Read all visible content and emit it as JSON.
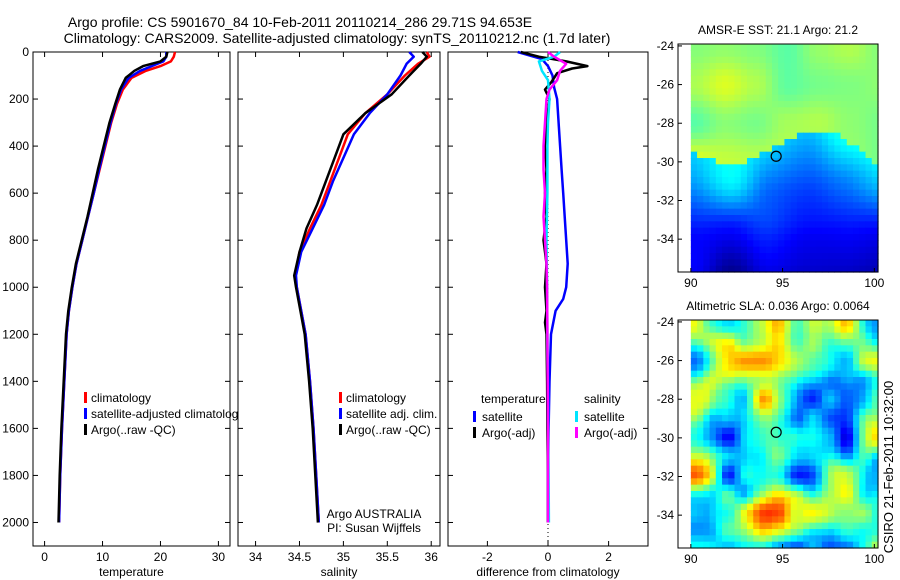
{
  "header": {
    "title_line1": "Argo profile: CS 5901670_84 10-Feb-2011 20110214_286 29.71S 94.653E",
    "title_line2": "Climatology: CARS2009. Satellite-adjusted climatology: synTS_20110212.nc (1.7d later)"
  },
  "side_note": "CSIRO 21-Feb-2011 10:32:00",
  "colors": {
    "climatology": "#ff0000",
    "satellite": "#0000ff",
    "argo": "#000000",
    "sal_satellite": "#00e5ff",
    "sal_argo": "#ff00ff"
  },
  "chart_data": [
    {
      "id": "temp",
      "type": "line",
      "xlabel": "temperature",
      "ylabel": "",
      "xlim": [
        -2,
        32
      ],
      "ylim": [
        2100,
        0
      ],
      "xticks": [
        0,
        10,
        20,
        30
      ],
      "yticks": [
        0,
        200,
        400,
        600,
        800,
        1000,
        1200,
        1400,
        1600,
        1800,
        2000
      ],
      "legend": [
        "climatology",
        "satellite-adjusted climatolog",
        "Argo(..raw -QC)"
      ],
      "series": [
        {
          "name": "climatology",
          "color": "#ff0000",
          "points": [
            [
              22.5,
              0
            ],
            [
              22.3,
              20
            ],
            [
              21.8,
              40
            ],
            [
              20.0,
              60
            ],
            [
              17.5,
              80
            ],
            [
              15.0,
              110
            ],
            [
              13.5,
              160
            ],
            [
              12.5,
              220
            ],
            [
              11.5,
              300
            ],
            [
              10.5,
              400
            ],
            [
              9.5,
              500
            ],
            [
              8.5,
              600
            ],
            [
              7.5,
              700
            ],
            [
              6.5,
              800
            ],
            [
              5.5,
              900
            ],
            [
              4.8,
              1000
            ],
            [
              4.2,
              1100
            ],
            [
              3.8,
              1200
            ],
            [
              3.4,
              1400
            ],
            [
              3.0,
              1600
            ],
            [
              2.7,
              1800
            ],
            [
              2.5,
              2000
            ]
          ]
        },
        {
          "name": "satellite-adjusted climatolog",
          "color": "#0000ff",
          "points": [
            [
              21.0,
              0
            ],
            [
              21.0,
              20
            ],
            [
              20.5,
              40
            ],
            [
              18.5,
              60
            ],
            [
              16.5,
              80
            ],
            [
              14.5,
              110
            ],
            [
              13.2,
              160
            ],
            [
              12.3,
              220
            ],
            [
              11.4,
              300
            ],
            [
              10.4,
              400
            ],
            [
              9.4,
              500
            ],
            [
              8.5,
              600
            ],
            [
              7.5,
              700
            ],
            [
              6.5,
              800
            ],
            [
              5.5,
              900
            ],
            [
              4.8,
              1000
            ],
            [
              4.2,
              1100
            ],
            [
              3.8,
              1200
            ],
            [
              3.4,
              1400
            ],
            [
              3.0,
              1600
            ],
            [
              2.7,
              1800
            ],
            [
              2.5,
              2000
            ]
          ]
        },
        {
          "name": "Argo(..raw -QC)",
          "color": "#000000",
          "points": [
            [
              21.2,
              0
            ],
            [
              21.0,
              20
            ],
            [
              20.0,
              40
            ],
            [
              17.0,
              60
            ],
            [
              15.5,
              80
            ],
            [
              14.0,
              110
            ],
            [
              13.0,
              160
            ],
            [
              12.2,
              220
            ],
            [
              11.2,
              300
            ],
            [
              10.2,
              400
            ],
            [
              9.2,
              500
            ],
            [
              8.3,
              600
            ],
            [
              7.4,
              700
            ],
            [
              6.4,
              800
            ],
            [
              5.4,
              900
            ],
            [
              4.7,
              1000
            ],
            [
              4.1,
              1100
            ],
            [
              3.7,
              1200
            ],
            [
              3.3,
              1400
            ],
            [
              2.9,
              1600
            ],
            [
              2.6,
              1800
            ],
            [
              2.4,
              2000
            ]
          ]
        }
      ]
    },
    {
      "id": "salt",
      "type": "line",
      "xlabel": "salinity",
      "xlim": [
        33.8,
        36.1
      ],
      "ylim": [
        2100,
        0
      ],
      "xticks": [
        34,
        34.5,
        35,
        35.5,
        36
      ],
      "yticks": [
        0,
        200,
        400,
        600,
        800,
        1000,
        1200,
        1400,
        1600,
        1800,
        2000
      ],
      "legend": [
        "climatology",
        "satellite adj. clim.",
        "Argo(..raw -QC)"
      ],
      "annotation": [
        "Argo AUSTRALIA",
        "PI: Susan Wijffels"
      ],
      "series": [
        {
          "name": "climatology",
          "color": "#ff0000",
          "points": [
            [
              35.95,
              0
            ],
            [
              35.98,
              20
            ],
            [
              35.85,
              50
            ],
            [
              35.7,
              100
            ],
            [
              35.5,
              180
            ],
            [
              35.25,
              260
            ],
            [
              35.05,
              350
            ],
            [
              34.95,
              450
            ],
            [
              34.85,
              550
            ],
            [
              34.75,
              650
            ],
            [
              34.62,
              750
            ],
            [
              34.5,
              850
            ],
            [
              34.45,
              950
            ],
            [
              34.47,
              1000
            ],
            [
              34.52,
              1100
            ],
            [
              34.57,
              1200
            ],
            [
              34.62,
              1400
            ],
            [
              34.66,
              1600
            ],
            [
              34.69,
              1800
            ],
            [
              34.72,
              2000
            ]
          ]
        },
        {
          "name": "satellite adj. clim.",
          "color": "#0000ff",
          "points": [
            [
              35.75,
              0
            ],
            [
              35.8,
              20
            ],
            [
              35.72,
              50
            ],
            [
              35.65,
              100
            ],
            [
              35.5,
              180
            ],
            [
              35.3,
              260
            ],
            [
              35.12,
              350
            ],
            [
              35.0,
              450
            ],
            [
              34.88,
              550
            ],
            [
              34.78,
              650
            ],
            [
              34.65,
              750
            ],
            [
              34.52,
              850
            ],
            [
              34.46,
              950
            ],
            [
              34.47,
              1000
            ],
            [
              34.52,
              1100
            ],
            [
              34.57,
              1200
            ],
            [
              34.62,
              1400
            ],
            [
              34.66,
              1600
            ],
            [
              34.69,
              1800
            ],
            [
              34.72,
              2000
            ]
          ]
        },
        {
          "name": "Argo(..raw -QC)",
          "color": "#000000",
          "points": [
            [
              35.9,
              0
            ],
            [
              35.95,
              20
            ],
            [
              35.88,
              50
            ],
            [
              35.75,
              100
            ],
            [
              35.55,
              180
            ],
            [
              35.25,
              260
            ],
            [
              35.0,
              350
            ],
            [
              34.9,
              450
            ],
            [
              34.8,
              550
            ],
            [
              34.7,
              650
            ],
            [
              34.58,
              750
            ],
            [
              34.5,
              850
            ],
            [
              34.44,
              950
            ],
            [
              34.46,
              1000
            ],
            [
              34.51,
              1100
            ],
            [
              34.56,
              1200
            ],
            [
              34.61,
              1400
            ],
            [
              34.65,
              1600
            ],
            [
              34.68,
              1800
            ],
            [
              34.71,
              2000
            ]
          ]
        }
      ]
    },
    {
      "id": "diff",
      "type": "line",
      "xlabel": "difference from climatology",
      "xlim": [
        -3.3,
        3.3
      ],
      "ylim": [
        2100,
        0
      ],
      "xticks": [
        -2,
        0,
        2
      ],
      "yticks": [
        0,
        200,
        400,
        600,
        800,
        1000,
        1200,
        1400,
        1600,
        1800,
        2000
      ],
      "legend_left_title": "temperature",
      "legend_right_title": "salinity",
      "legend_left": [
        "satellite",
        "Argo(-adj)"
      ],
      "legend_right": [
        "satellite",
        "Argo(-adj)"
      ],
      "series": [
        {
          "name": "temperature satellite",
          "color": "#0000ff",
          "points": [
            [
              -1.0,
              0
            ],
            [
              -0.6,
              15
            ],
            [
              -0.2,
              30
            ],
            [
              0.0,
              60
            ],
            [
              0.15,
              100
            ],
            [
              0.2,
              150
            ],
            [
              0.3,
              200
            ],
            [
              0.35,
              300
            ],
            [
              0.4,
              400
            ],
            [
              0.45,
              500
            ],
            [
              0.5,
              600
            ],
            [
              0.55,
              700
            ],
            [
              0.6,
              800
            ],
            [
              0.65,
              900
            ],
            [
              0.6,
              1000
            ],
            [
              0.5,
              1050
            ],
            [
              0.25,
              1100
            ],
            [
              0.1,
              1200
            ],
            [
              0.05,
              1400
            ],
            [
              0.02,
              1600
            ],
            [
              0.0,
              1800
            ],
            [
              0.0,
              2000
            ]
          ]
        },
        {
          "name": "temperature Argo(-adj)",
          "color": "#000000",
          "points": [
            [
              -0.9,
              0
            ],
            [
              -0.3,
              20
            ],
            [
              0.6,
              40
            ],
            [
              1.3,
              60
            ],
            [
              0.8,
              70
            ],
            [
              0.3,
              90
            ],
            [
              0.2,
              110
            ],
            [
              0.1,
              130
            ],
            [
              -0.1,
              160
            ],
            [
              0.05,
              200
            ],
            [
              -0.05,
              300
            ],
            [
              -0.1,
              400
            ],
            [
              -0.05,
              500
            ],
            [
              -0.1,
              600
            ],
            [
              -0.05,
              700
            ],
            [
              -0.15,
              800
            ],
            [
              -0.05,
              900
            ],
            [
              -0.1,
              1000
            ],
            [
              -0.05,
              1100
            ],
            [
              -0.1,
              1150
            ],
            [
              -0.05,
              1200
            ],
            [
              -0.03,
              1400
            ],
            [
              -0.02,
              1600
            ],
            [
              0.0,
              1800
            ],
            [
              0.0,
              2000
            ]
          ]
        },
        {
          "name": "salinity satellite",
          "color": "#00e5ff",
          "points": [
            [
              0.4,
              0
            ],
            [
              0.2,
              20
            ],
            [
              -0.3,
              40
            ],
            [
              -0.2,
              80
            ],
            [
              0.0,
              120
            ],
            [
              0.05,
              200
            ],
            [
              0.0,
              300
            ],
            [
              -0.02,
              400
            ],
            [
              -0.02,
              600
            ],
            [
              -0.05,
              800
            ],
            [
              -0.03,
              1000
            ],
            [
              -0.02,
              1200
            ],
            [
              0.0,
              1500
            ],
            [
              0.02,
              1800
            ],
            [
              0.03,
              2000
            ]
          ]
        },
        {
          "name": "salinity Argo(-adj)",
          "color": "#ff00ff",
          "points": [
            [
              0.0,
              0
            ],
            [
              0.2,
              20
            ],
            [
              0.6,
              50
            ],
            [
              0.4,
              80
            ],
            [
              0.3,
              120
            ],
            [
              0.05,
              160
            ],
            [
              -0.05,
              200
            ],
            [
              -0.1,
              300
            ],
            [
              -0.15,
              400
            ],
            [
              -0.15,
              500
            ],
            [
              -0.1,
              600
            ],
            [
              -0.15,
              700
            ],
            [
              -0.1,
              800
            ],
            [
              -0.05,
              900
            ],
            [
              -0.03,
              1000
            ],
            [
              -0.02,
              1200
            ],
            [
              -0.01,
              1400
            ],
            [
              0.0,
              1600
            ],
            [
              0.0,
              1800
            ],
            [
              0.0,
              2000
            ]
          ]
        }
      ]
    },
    {
      "id": "sst_map",
      "type": "heatmap",
      "title": "AMSR-E SST: 21.1 Argo: 21.2",
      "xlim": [
        89.3,
        100.2
      ],
      "ylim": [
        -35.7,
        -23.9
      ],
      "xticks": [
        90,
        95,
        100
      ],
      "yticks": [
        -24,
        -26,
        -28,
        -30,
        -32,
        -34
      ],
      "marker": [
        94.65,
        -29.71
      ]
    },
    {
      "id": "sla_map",
      "type": "heatmap",
      "title": "Altimetric SLA: 0.036 Argo: 0.0064",
      "xlim": [
        89.3,
        100.2
      ],
      "ylim": [
        -35.7,
        -23.9
      ],
      "xticks": [
        90,
        95,
        100
      ],
      "yticks": [
        -24,
        -26,
        -28,
        -30,
        -32,
        -34
      ],
      "marker": [
        94.65,
        -29.71
      ]
    }
  ]
}
